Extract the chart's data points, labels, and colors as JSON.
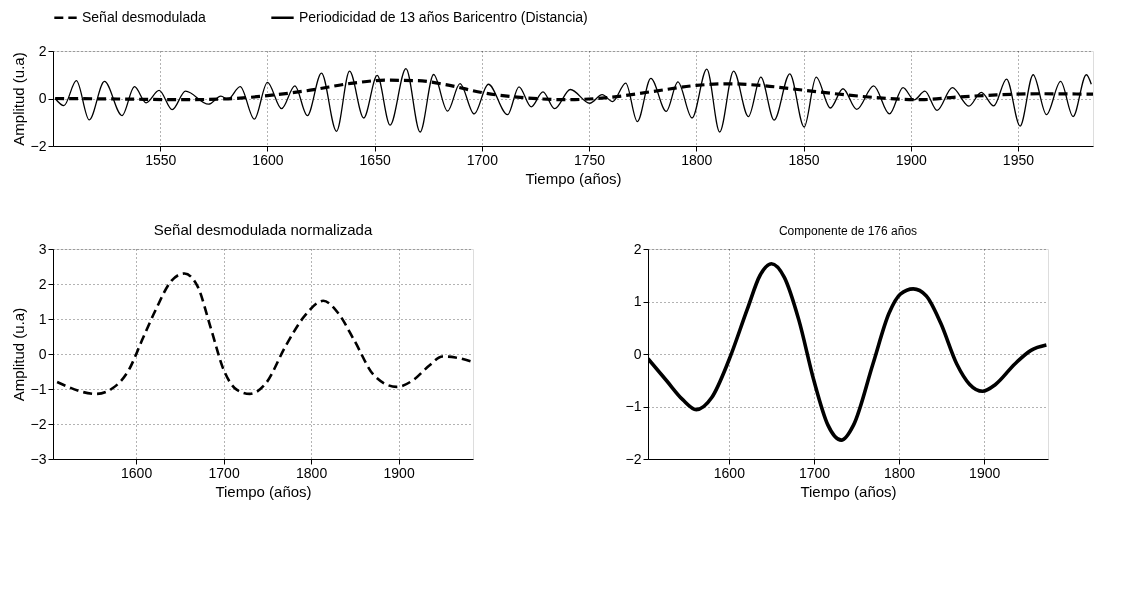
{
  "chart_data": [
    {
      "type": "line",
      "xlabel": "Tiempo (años)",
      "ylabel": "Amplitud (u.a)",
      "xlim": [
        1500,
        1985
      ],
      "ylim": [
        -2,
        2
      ],
      "xticks": [
        1550,
        1600,
        1650,
        1700,
        1750,
        1800,
        1850,
        1900,
        1950
      ],
      "yticks": [
        -2,
        0,
        2
      ],
      "grid": true,
      "legend": "top",
      "series": [
        {
          "name": "Señal desmodulada",
          "color": "#000000",
          "line_style": "dashed",
          "x": [
            1501,
            1530,
            1560,
            1580,
            1600,
            1620,
            1640,
            1655,
            1670,
            1685,
            1700,
            1720,
            1740,
            1760,
            1780,
            1800,
            1815,
            1830,
            1850,
            1870,
            1890,
            1905,
            1920,
            1940,
            1960,
            1985
          ],
          "values": [
            0.0,
            -0.02,
            -0.05,
            -0.02,
            0.12,
            0.35,
            0.65,
            0.77,
            0.75,
            0.55,
            0.25,
            0.03,
            -0.05,
            0.05,
            0.3,
            0.55,
            0.62,
            0.55,
            0.35,
            0.15,
            0.0,
            -0.05,
            0.05,
            0.15,
            0.2,
            0.18
          ]
        },
        {
          "name": "Periodicidad de 13 años Baricentro (Distancia)",
          "color": "#000000",
          "line_style": "solid",
          "x": [
            1501,
            1505.1,
            1510.9,
            1516.9,
            1524,
            1532.2,
            1538,
            1543.4,
            1549.5,
            1555.6,
            1561.8,
            1572.5,
            1578.3,
            1581.6,
            1587.3,
            1593.9,
            1600,
            1606.6,
            1612.8,
            1618.6,
            1625.2,
            1632.2,
            1638.3,
            1644.9,
            1651.2,
            1657.2,
            1664.6,
            1671.2,
            1677.5,
            1684,
            1689.8,
            1696.4,
            1703,
            1712,
            1717.3,
            1723,
            1728.5,
            1733.9,
            1741.3,
            1750.3,
            1756.1,
            1761,
            1767.1,
            1772.5,
            1778.8,
            1786,
            1791.4,
            1798,
            1804.9,
            1810.9,
            1817.4,
            1824.3,
            1830.1,
            1836.3,
            1843.6,
            1850.3,
            1855.9,
            1862.5,
            1868.4,
            1874.8,
            1882.7,
            1890.1,
            1896.4,
            1901.6,
            1906.6,
            1912.3,
            1919.4,
            1927.1,
            1932.9,
            1938.7,
            1944.7,
            1951,
            1957.1,
            1963.3,
            1969.9,
            1975.7,
            1981.9,
            1984.2
          ],
          "values": [
            0.0,
            -0.3,
            0.75,
            -0.9,
            0.72,
            -0.72,
            0.5,
            -0.18,
            0.34,
            -0.47,
            0.31,
            -0.24,
            0.1,
            -0.03,
            0.5,
            -0.87,
            0.68,
            -0.43,
            0.53,
            -0.72,
            1.07,
            -1.38,
            1.15,
            -0.82,
            0.97,
            -1.12,
            1.26,
            -1.41,
            1.01,
            -0.53,
            0.63,
            -0.65,
            0.6,
            -0.68,
            0.49,
            -0.35,
            0.28,
            -0.43,
            0.38,
            -0.2,
            0.16,
            -0.13,
            0.65,
            -0.97,
            0.85,
            -0.54,
            0.7,
            -0.82,
            1.24,
            -1.41,
            1.15,
            -0.76,
            0.9,
            -0.91,
            1.04,
            -1.2,
            0.9,
            -0.4,
            0.41,
            -0.46,
            0.53,
            -0.65,
            0.46,
            -0.06,
            0.31,
            -0.5,
            0.46,
            -0.32,
            0.26,
            -0.31,
            0.82,
            -1.16,
            1.0,
            -0.68,
            0.72,
            -0.76,
            1.0,
            0.6
          ]
        }
      ]
    },
    {
      "type": "line",
      "title": "Señal desmodulada normalizada",
      "xlabel": "Tiempo (años)",
      "ylabel": "Amplitud (u.a)",
      "xlim": [
        1505,
        1985
      ],
      "ylim": [
        -3,
        3
      ],
      "xticks": [
        1600,
        1700,
        1800,
        1900
      ],
      "yticks": [
        -3,
        -2,
        -1,
        0,
        1,
        2,
        3
      ],
      "grid": true,
      "series": [
        {
          "color": "#000000",
          "line_style": "dashed",
          "x": [
            1509.7,
            1554.5,
            1573,
            1591.8,
            1606.7,
            1621.6,
            1640.3,
            1655.2,
            1670.1,
            1685,
            1700,
            1714.9,
            1729.9,
            1748.5,
            1770.9,
            1793.3,
            1813.8,
            1830.6,
            1849.3,
            1871.6,
            1897.8,
            1916.4,
            1935.1,
            1950,
            1964.9,
            1983.6
          ],
          "values": [
            -0.8,
            -1.14,
            -0.98,
            -0.45,
            0.39,
            1.22,
            2.09,
            2.3,
            1.94,
            0.77,
            -0.45,
            -1.02,
            -1.14,
            -0.83,
            0.23,
            1.11,
            1.52,
            1.18,
            0.39,
            -0.6,
            -0.94,
            -0.75,
            -0.33,
            -0.07,
            -0.1,
            -0.22
          ]
        }
      ]
    },
    {
      "type": "line",
      "title": "Componente de 176 años",
      "xlabel": "Tiempo (años)",
      "xlim": [
        1505,
        1975
      ],
      "ylim": [
        -2,
        2
      ],
      "xticks": [
        1600,
        1700,
        1800,
        1900
      ],
      "yticks": [
        -2,
        -1,
        0,
        1,
        2
      ],
      "grid": true,
      "series": [
        {
          "color": "#000000",
          "line_style": "solid",
          "x": [
            1505,
            1526.9,
            1545.8,
            1561.7,
            1579.9,
            1600,
            1621.6,
            1636.7,
            1650,
            1665.2,
            1682.2,
            1700,
            1716.3,
            1732.2,
            1746.6,
            1769.3,
            1788.3,
            1801.5,
            1816.7,
            1831.8,
            1848.9,
            1867.8,
            1883,
            1898.1,
            1913.3,
            1936,
            1955,
            1973.1
          ],
          "values": [
            -0.09,
            -0.51,
            -0.87,
            -1.06,
            -0.83,
            -0.12,
            0.85,
            1.5,
            1.72,
            1.46,
            0.65,
            -0.51,
            -1.35,
            -1.64,
            -1.35,
            -0.19,
            0.78,
            1.14,
            1.24,
            1.11,
            0.59,
            -0.19,
            -0.58,
            -0.71,
            -0.58,
            -0.19,
            0.07,
            0.17
          ]
        }
      ]
    }
  ]
}
